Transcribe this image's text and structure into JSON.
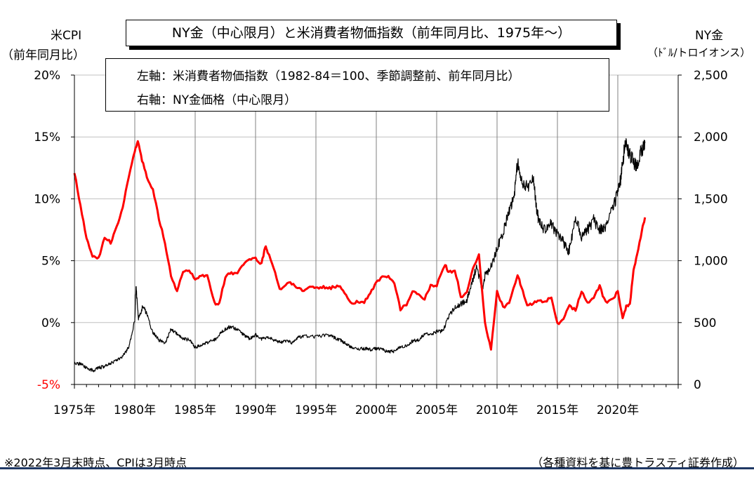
{
  "title": "NY金（中心限月）と米消費者物価指数（前年同月比、1975年～）",
  "legend": {
    "left_axis": "左軸：米消費者物価指数（1982-84＝100、季節調整前、前年同月比）",
    "right_axis": "右軸：NY金価格（中心限月）"
  },
  "left_axis_caption": [
    "米CPI",
    "（前年同月比）"
  ],
  "right_axis_caption": [
    "NY金",
    "（ﾄﾞﾙ/トロイオンス）"
  ],
  "footnote_left": "※2022年3月末時点、CPIは3月時点",
  "footnote_right": "（各種資料を基に豊トラスティ証券作成）",
  "colors": {
    "cpi": "#ff0000",
    "gold": "#000000",
    "grid": "#c0c0c0",
    "rule": "#1f3864"
  },
  "chart_data": {
    "type": "line",
    "title": "NY金（中心限月）と米消費者物価指数（前年同月比、1975年～）",
    "grid": true,
    "x": {
      "ticks": [
        1975,
        1980,
        1985,
        1990,
        1995,
        2000,
        2005,
        2010,
        2015,
        2020
      ],
      "tick_labels": [
        "1975年",
        "1980年",
        "1985年",
        "1990年",
        "1995年",
        "2000年",
        "2005年",
        "2010年",
        "2015年",
        "2020年"
      ],
      "range": [
        1975,
        2025
      ]
    },
    "y_left": {
      "label": "米CPI（前年同月比）",
      "range": [
        -5,
        20
      ],
      "ticks": [
        -5,
        0,
        5,
        10,
        15,
        20
      ],
      "tick_labels": [
        "-5%",
        "0%",
        "5%",
        "10%",
        "15%",
        "20%"
      ],
      "tick_color": "#ff0000"
    },
    "y_right": {
      "label": "NY金（ﾄﾞﾙ/トロイオンス）",
      "range": [
        0,
        2500
      ],
      "ticks": [
        0,
        500,
        1000,
        1500,
        2000,
        2500
      ],
      "tick_labels": [
        "0",
        "500",
        "1,000",
        "1,500",
        "2,000",
        "2,500"
      ]
    },
    "series": [
      {
        "name": "米消費者物価指数（前年同月比）",
        "axis": "left",
        "color": "#ff0000",
        "x": [
          1975.0,
          1975.5,
          1976.0,
          1976.5,
          1977.0,
          1977.5,
          1978.0,
          1978.5,
          1979.0,
          1979.5,
          1980.0,
          1980.25,
          1980.6,
          1981.0,
          1981.5,
          1982.0,
          1982.5,
          1983.0,
          1983.5,
          1984.0,
          1984.5,
          1985.0,
          1985.5,
          1986.0,
          1986.6,
          1987.0,
          1987.5,
          1988.0,
          1988.5,
          1989.0,
          1989.5,
          1990.0,
          1990.5,
          1990.8,
          1991.0,
          1991.5,
          1992.0,
          1992.5,
          1993.0,
          1993.5,
          1994.0,
          1994.5,
          1995.0,
          1995.5,
          1996.0,
          1996.5,
          1997.0,
          1997.5,
          1998.0,
          1998.5,
          1999.0,
          1999.5,
          2000.0,
          2000.5,
          2001.0,
          2001.5,
          2002.0,
          2002.5,
          2003.0,
          2003.5,
          2004.0,
          2004.5,
          2005.0,
          2005.7,
          2006.0,
          2006.5,
          2007.0,
          2007.5,
          2008.0,
          2008.5,
          2009.0,
          2009.5,
          2010.0,
          2010.5,
          2011.0,
          2011.7,
          2012.0,
          2012.5,
          2013.0,
          2013.5,
          2014.0,
          2014.5,
          2015.0,
          2015.5,
          2016.0,
          2016.5,
          2017.0,
          2017.5,
          2018.0,
          2018.5,
          2019.0,
          2019.5,
          2020.0,
          2020.4,
          2020.7,
          2021.0,
          2021.3,
          2021.6,
          2022.0,
          2022.25
        ],
        "values": [
          12.2,
          9.4,
          6.8,
          5.4,
          5.2,
          6.8,
          6.5,
          7.7,
          9.3,
          11.8,
          13.9,
          14.7,
          13.1,
          11.8,
          10.7,
          8.4,
          6.5,
          3.7,
          2.6,
          4.2,
          4.2,
          3.5,
          3.7,
          3.9,
          1.6,
          1.5,
          3.7,
          4.0,
          4.1,
          4.7,
          5.0,
          5.2,
          4.7,
          6.2,
          5.7,
          4.5,
          2.6,
          3.1,
          3.2,
          2.8,
          2.5,
          2.8,
          2.8,
          2.9,
          2.7,
          2.9,
          3.0,
          2.2,
          1.6,
          1.7,
          1.7,
          2.3,
          3.2,
          3.7,
          3.7,
          3.2,
          1.1,
          1.5,
          2.6,
          2.2,
          1.9,
          3.0,
          3.0,
          4.7,
          4.0,
          4.3,
          2.1,
          2.4,
          4.3,
          5.4,
          -0.1,
          -2.1,
          2.6,
          1.2,
          1.6,
          3.9,
          2.9,
          1.4,
          1.6,
          1.8,
          1.6,
          2.1,
          -0.1,
          0.2,
          1.4,
          1.0,
          2.5,
          1.6,
          2.1,
          2.9,
          1.6,
          1.8,
          2.5,
          0.3,
          1.3,
          1.4,
          4.2,
          5.4,
          7.5,
          8.5
        ]
      },
      {
        "name": "NY金価格（中心限月）",
        "axis": "right",
        "color": "#000000",
        "x": [
          1975.0,
          1975.5,
          1976.0,
          1976.6,
          1977.0,
          1977.5,
          1978.0,
          1978.5,
          1979.0,
          1979.5,
          1980.0,
          1980.1,
          1980.3,
          1980.7,
          1981.0,
          1981.5,
          1982.0,
          1982.5,
          1983.0,
          1983.5,
          1984.0,
          1984.5,
          1985.0,
          1985.5,
          1986.0,
          1986.5,
          1987.0,
          1987.5,
          1988.0,
          1988.5,
          1989.0,
          1989.5,
          1990.0,
          1990.5,
          1991.0,
          1991.5,
          1992.0,
          1992.5,
          1993.0,
          1993.5,
          1994.0,
          1995.0,
          1996.0,
          1996.5,
          1997.0,
          1997.5,
          1998.0,
          1998.5,
          1999.0,
          1999.5,
          2000.0,
          2000.5,
          2001.0,
          2001.5,
          2002.0,
          2002.5,
          2003.0,
          2003.5,
          2004.0,
          2004.5,
          2005.0,
          2005.5,
          2006.0,
          2006.5,
          2007.0,
          2007.5,
          2008.0,
          2008.3,
          2008.8,
          2009.0,
          2009.5,
          2010.0,
          2010.5,
          2011.0,
          2011.4,
          2011.7,
          2012.0,
          2012.5,
          2013.0,
          2013.3,
          2013.5,
          2014.0,
          2014.5,
          2015.0,
          2015.5,
          2015.9,
          2016.0,
          2016.5,
          2017.0,
          2017.5,
          2018.0,
          2018.5,
          2019.0,
          2019.5,
          2020.0,
          2020.3,
          2020.6,
          2021.0,
          2021.3,
          2021.6,
          2022.0,
          2022.25
        ],
        "values": [
          175,
          165,
          135,
          110,
          135,
          145,
          175,
          195,
          230,
          300,
          520,
          800,
          530,
          640,
          560,
          420,
          360,
          330,
          450,
          410,
          370,
          360,
          300,
          320,
          340,
          350,
          400,
          450,
          470,
          440,
          400,
          370,
          400,
          370,
          380,
          360,
          340,
          350,
          340,
          380,
          390,
          385,
          400,
          380,
          360,
          330,
          300,
          290,
          290,
          280,
          290,
          280,
          265,
          270,
          300,
          310,
          350,
          360,
          410,
          400,
          430,
          430,
          550,
          620,
          650,
          680,
          850,
          950,
          750,
          880,
          950,
          1100,
          1230,
          1400,
          1520,
          1800,
          1650,
          1600,
          1670,
          1400,
          1300,
          1250,
          1300,
          1200,
          1150,
          1060,
          1100,
          1350,
          1200,
          1250,
          1330,
          1250,
          1280,
          1400,
          1550,
          1700,
          1950,
          1850,
          1800,
          1780,
          1900,
          1950
        ]
      }
    ]
  }
}
